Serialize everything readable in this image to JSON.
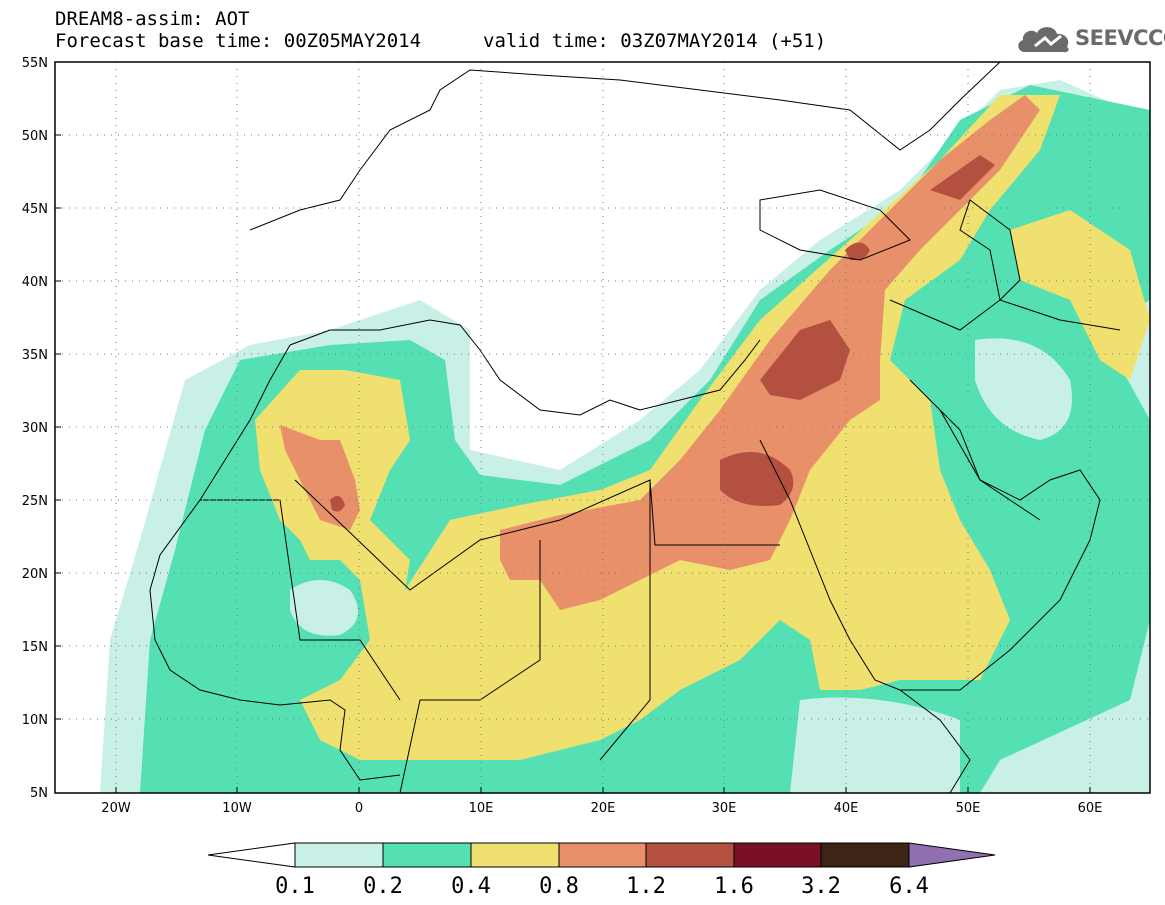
{
  "header": {
    "title": "DREAM8-assim: AOT",
    "base_time": "Forecast base time: 00Z05MAY2014",
    "valid_time": "valid time: 03Z07MAY2014 (+51)"
  },
  "logo": {
    "name": "cloud-icon",
    "text": "SEEVCCC"
  },
  "map": {
    "lat_labels": [
      "55N",
      "50N",
      "45N",
      "40N",
      "35N",
      "30N",
      "25N",
      "20N",
      "15N",
      "10N",
      "5N"
    ],
    "lon_labels": [
      "20W",
      "10W",
      "0",
      "10E",
      "20E",
      "30E",
      "40E",
      "50E",
      "60E"
    ],
    "grid": true,
    "colors": {
      "land": "#ffffff",
      "border": "#000000",
      "ocean": "#ffffff"
    }
  },
  "colorbar": {
    "labels": [
      "0.1",
      "0.2",
      "0.4",
      "0.8",
      "1.2",
      "1.6",
      "3.2",
      "6.4"
    ],
    "colors": [
      "#c8f0e6",
      "#55e0b4",
      "#f0e070",
      "#e8906a",
      "#b45040",
      "#7a1028",
      "#3c2416",
      "#9070b0"
    ]
  }
}
